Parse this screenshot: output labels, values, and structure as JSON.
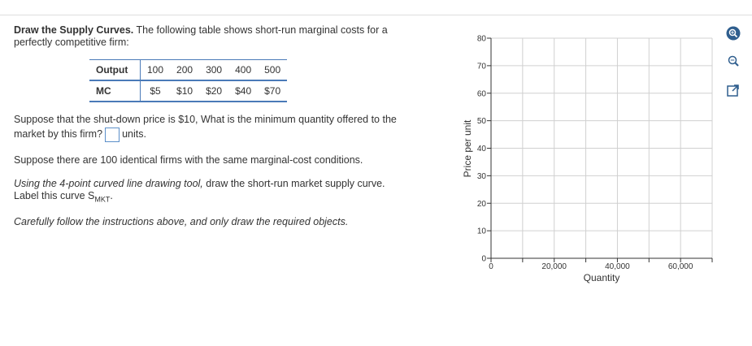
{
  "problem": {
    "heading": "Draw the Supply Curves.",
    "intro": "The following table shows short-run marginal costs for a perfectly competitive firm:",
    "table": {
      "rows": [
        [
          "Output",
          100,
          200,
          300,
          400,
          500
        ],
        [
          "MC",
          "$5",
          "$10",
          "$20",
          "$40",
          "$70"
        ]
      ]
    },
    "question": "Suppose that the shut-down price is $10, What is the minimum quantity offered to the market by this firm?",
    "units": "units.",
    "statement": "Suppose there are 100 identical firms with the same marginal-cost conditions.",
    "instruction_italic": "Using the 4-point curved line drawing tool,",
    "instruction_rest": "draw the short-run market supply curve.",
    "label_text": "Label this curve S",
    "label_sub": "MKT",
    "label_end": ".",
    "caution": "Carefully follow the instructions above, and only draw the required objects."
  },
  "graph": {
    "ylabel": "Price per unit",
    "xlabel": "Quantity",
    "xlim": [
      0,
      70000
    ],
    "ylim": [
      0,
      80
    ],
    "yticks": [
      0,
      10,
      20,
      30,
      40,
      50,
      60,
      70,
      80
    ],
    "xticks": [
      0,
      {
        "value": 20000,
        "label": "20,000"
      },
      {
        "value": 40000,
        "label": "40,000"
      },
      {
        "value": 60000,
        "label": "60,000"
      }
    ],
    "xminor": [
      10000,
      30000,
      50000,
      70000
    ],
    "grid": true
  }
}
